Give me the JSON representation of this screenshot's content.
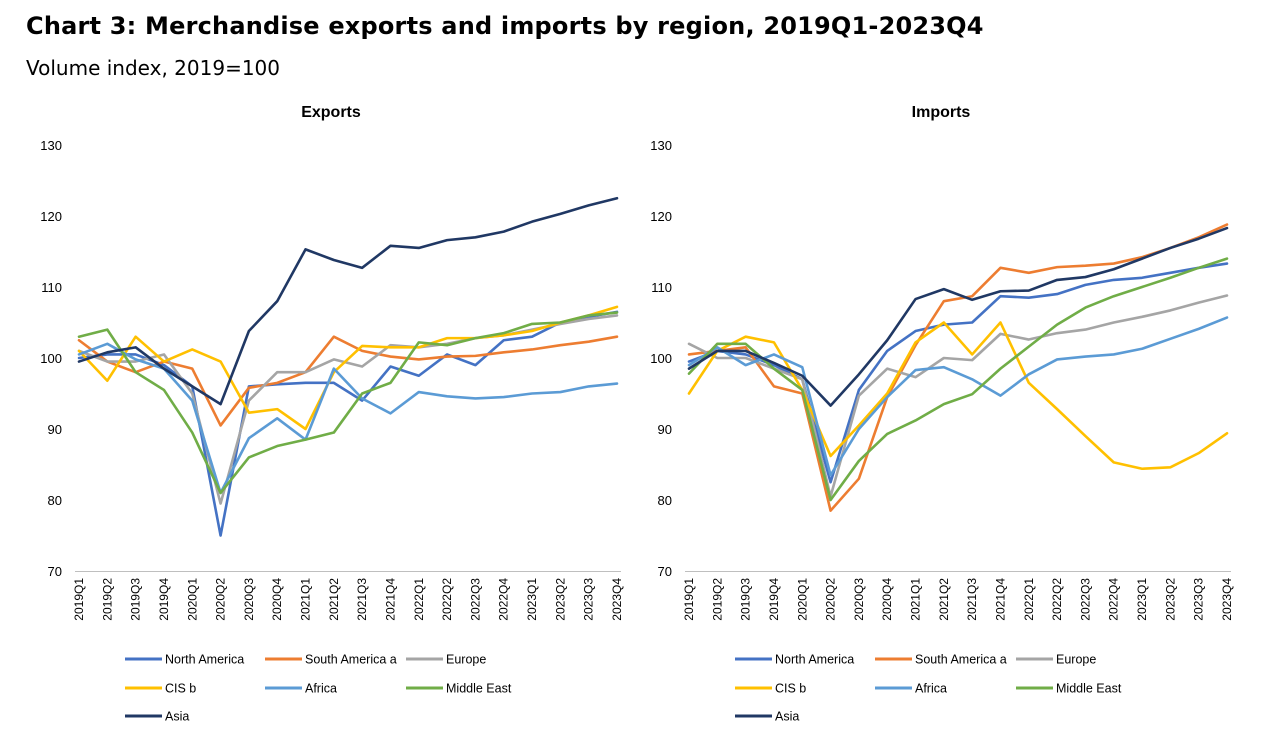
{
  "title": "Chart 3: Merchandise exports and imports by region, 2019Q1-2023Q4",
  "subtitle": "Volume index, 2019=100",
  "colors": {
    "North America": "#4472C4",
    "South America a": "#ED7D31",
    "Europe": "#A5A5A5",
    "CIS b": "#FFC000",
    "Africa": "#5B9BD5",
    "Middle East": "#70AD47",
    "Asia": "#203864"
  },
  "chart_data": [
    {
      "type": "line",
      "title": "Exports",
      "ylim": [
        70,
        130
      ],
      "yticks": [
        "70",
        "80",
        "90",
        "100",
        "110",
        "120",
        "130"
      ],
      "grid": false,
      "legend": "bottom",
      "categories": [
        "2019Q1",
        "2019Q2",
        "2019Q3",
        "2019Q4",
        "2020Q1",
        "2020Q2",
        "2020Q3",
        "2020Q4",
        "2021Q1",
        "2021Q2",
        "2021Q3",
        "2021Q4",
        "2022Q1",
        "2022Q2",
        "2022Q3",
        "2022Q4",
        "2023Q1",
        "2023Q2",
        "2023Q3",
        "2023Q4"
      ],
      "series": [
        {
          "name": "North America",
          "values": [
            100,
            100.5,
            100.5,
            99,
            96,
            75,
            96,
            96.3,
            96.5,
            96.5,
            94,
            98.8,
            97.5,
            100.5,
            99,
            102.5,
            103,
            105,
            105.8,
            106.5
          ]
        },
        {
          "name": "South America a",
          "values": [
            102.5,
            99.5,
            98,
            99.5,
            98.5,
            90.5,
            95.8,
            96.5,
            98,
            103,
            101,
            100.2,
            99.8,
            100.2,
            100.3,
            100.8,
            101.2,
            101.8,
            102.3,
            103
          ]
        },
        {
          "name": "Europe",
          "values": [
            101,
            99.5,
            99.5,
            100.5,
            95,
            79.5,
            94,
            98,
            98,
            99.8,
            98.8,
            101.8,
            101.5,
            102,
            102.8,
            103.2,
            104,
            104.8,
            105.5,
            106
          ]
        },
        {
          "name": "CIS b",
          "values": [
            101,
            96.8,
            103,
            99.5,
            101.2,
            99.5,
            92.3,
            92.8,
            90,
            98,
            101.7,
            101.5,
            101.5,
            102.8,
            102.8,
            103.2,
            103.8,
            105,
            106,
            107.2
          ]
        },
        {
          "name": "Africa",
          "values": [
            100.5,
            102,
            99.8,
            98.5,
            94,
            81,
            88.7,
            91.5,
            88.5,
            98.5,
            94.3,
            92.2,
            95.2,
            94.6,
            94.3,
            94.5,
            95,
            95.2,
            96,
            96.4
          ]
        },
        {
          "name": "Middle East",
          "values": [
            103,
            104,
            98,
            95.5,
            89.5,
            81,
            86,
            87.6,
            88.5,
            89.5,
            95,
            96.5,
            102.2,
            101.8,
            102.8,
            103.5,
            104.8,
            105,
            106,
            106.4
          ]
        },
        {
          "name": "Asia",
          "values": [
            99.5,
            100.8,
            101.5,
            98.5,
            96,
            93.5,
            103.8,
            108,
            115.3,
            113.8,
            112.7,
            115.8,
            115.5,
            116.6,
            117,
            117.8,
            119.2,
            120.3,
            121.5,
            122.5
          ]
        }
      ]
    },
    {
      "type": "line",
      "title": "Imports",
      "ylim": [
        70,
        130
      ],
      "yticks": [
        "70",
        "80",
        "90",
        "100",
        "110",
        "120",
        "130"
      ],
      "grid": false,
      "legend": "bottom",
      "categories": [
        "2019Q1",
        "2019Q2",
        "2019Q3",
        "2019Q4",
        "2020Q1",
        "2020Q2",
        "2020Q3",
        "2020Q4",
        "2021Q1",
        "2021Q2",
        "2021Q3",
        "2021Q4",
        "2022Q1",
        "2022Q2",
        "2022Q3",
        "2022Q4",
        "2023Q1",
        "2023Q2",
        "2023Q3",
        "2023Q4"
      ],
      "series": [
        {
          "name": "North America",
          "values": [
            99.5,
            101,
            100.5,
            99,
            97,
            82.5,
            95.5,
            101,
            103.8,
            104.7,
            105,
            108.7,
            108.5,
            109,
            110.3,
            111,
            111.3,
            112,
            112.7,
            113.3
          ]
        },
        {
          "name": "South America a",
          "values": [
            100.5,
            101,
            101.5,
            96,
            95,
            78.5,
            83,
            94.5,
            101.8,
            108,
            108.7,
            112.7,
            112,
            112.8,
            113,
            113.3,
            114.2,
            115.5,
            117,
            118.8
          ]
        },
        {
          "name": "Europe",
          "values": [
            102,
            100,
            100,
            98.5,
            97,
            80.5,
            94.7,
            98.5,
            97.3,
            100,
            99.7,
            103.4,
            102.6,
            103.5,
            104,
            105,
            105.8,
            106.7,
            107.8,
            108.8
          ]
        },
        {
          "name": "CIS b",
          "values": [
            95,
            101,
            103,
            102.2,
            95.5,
            86.2,
            90.5,
            95,
            102.2,
            105,
            100.5,
            105,
            96.5,
            92.8,
            89,
            85.3,
            84.4,
            84.6,
            86.6,
            89.4
          ]
        },
        {
          "name": "Africa",
          "values": [
            99,
            101.5,
            99,
            100.5,
            98.7,
            83.5,
            90,
            94.5,
            98.3,
            98.7,
            97,
            94.7,
            97.7,
            99.8,
            100.2,
            100.5,
            101.3,
            102.7,
            104.1,
            105.7
          ]
        },
        {
          "name": "Middle East",
          "values": [
            97.8,
            102,
            102,
            98.5,
            95.5,
            80,
            85.5,
            89.3,
            91.2,
            93.5,
            94.9,
            98.5,
            101.6,
            104.7,
            107.1,
            108.7,
            110,
            111.3,
            112.7,
            114
          ]
        },
        {
          "name": "Asia",
          "values": [
            98.5,
            101,
            101,
            99.3,
            97.5,
            93.3,
            97.7,
            102.5,
            108.3,
            109.7,
            108.2,
            109.4,
            109.5,
            111,
            111.4,
            112.5,
            114,
            115.5,
            116.8,
            118.3
          ]
        }
      ]
    }
  ]
}
